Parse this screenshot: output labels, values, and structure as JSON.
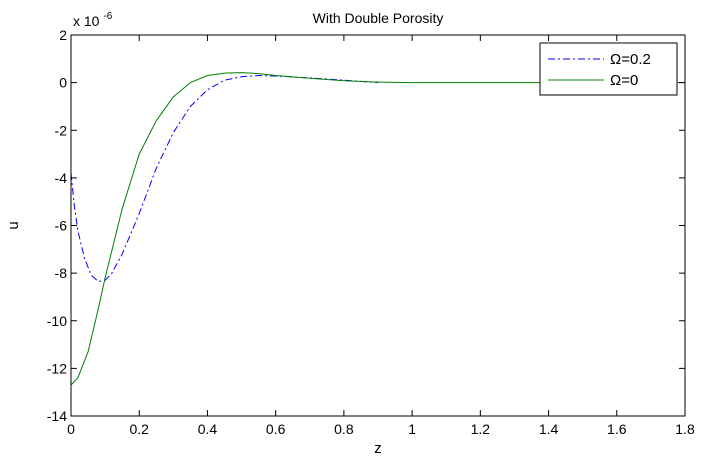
{
  "chart_data": {
    "type": "line",
    "title": "With Double Porosity",
    "xlabel": "z",
    "ylabel": "u",
    "exponent_label": "x 10",
    "exponent_power": "-6",
    "xlim": [
      0,
      1.8
    ],
    "ylim": [
      -14,
      2
    ],
    "xticks": [
      0,
      0.2,
      0.4,
      0.6,
      0.8,
      1,
      1.2,
      1.4,
      1.6,
      1.8
    ],
    "xtick_labels": [
      "0",
      "0.2",
      "0.4",
      "0.6",
      "0.8",
      "1",
      "1.2",
      "1.4",
      "1.6",
      "1.8"
    ],
    "yticks": [
      -14,
      -12,
      -10,
      -8,
      -6,
      -4,
      -2,
      0,
      2
    ],
    "ytick_labels": [
      "-14",
      "-12",
      "-10",
      "-8",
      "-6",
      "-4",
      "-2",
      "0",
      "2"
    ],
    "grid": false,
    "legend_position": "top-right",
    "series": [
      {
        "name": "Ω=0.2",
        "color": "#0000ff",
        "style": "dash-dot",
        "x": [
          0,
          0.01,
          0.02,
          0.04,
          0.06,
          0.08,
          0.1,
          0.12,
          0.15,
          0.2,
          0.25,
          0.3,
          0.35,
          0.4,
          0.45,
          0.5,
          0.55,
          0.6,
          0.7,
          0.8,
          0.9
        ],
        "y": [
          -3.8,
          -5.2,
          -6.2,
          -7.4,
          -8.1,
          -8.35,
          -8.3,
          -8.0,
          -7.2,
          -5.5,
          -3.6,
          -2.1,
          -1.0,
          -0.3,
          0.1,
          0.25,
          0.3,
          0.28,
          0.2,
          0.1,
          0.0
        ]
      },
      {
        "name": "Ω=0",
        "color": "#008000",
        "style": "solid",
        "x": [
          0,
          0.02,
          0.05,
          0.08,
          0.1,
          0.15,
          0.2,
          0.25,
          0.3,
          0.35,
          0.4,
          0.45,
          0.5,
          0.55,
          0.6,
          0.7,
          0.8,
          0.9,
          1.0,
          1.2,
          1.4,
          1.6,
          1.8
        ],
        "y": [
          -12.7,
          -12.4,
          -11.3,
          -9.5,
          -8.2,
          -5.3,
          -3.0,
          -1.6,
          -0.6,
          0.0,
          0.3,
          0.4,
          0.42,
          0.38,
          0.3,
          0.18,
          0.08,
          0.02,
          0.0,
          0.0,
          0.0,
          0.0,
          0.0
        ]
      }
    ]
  }
}
